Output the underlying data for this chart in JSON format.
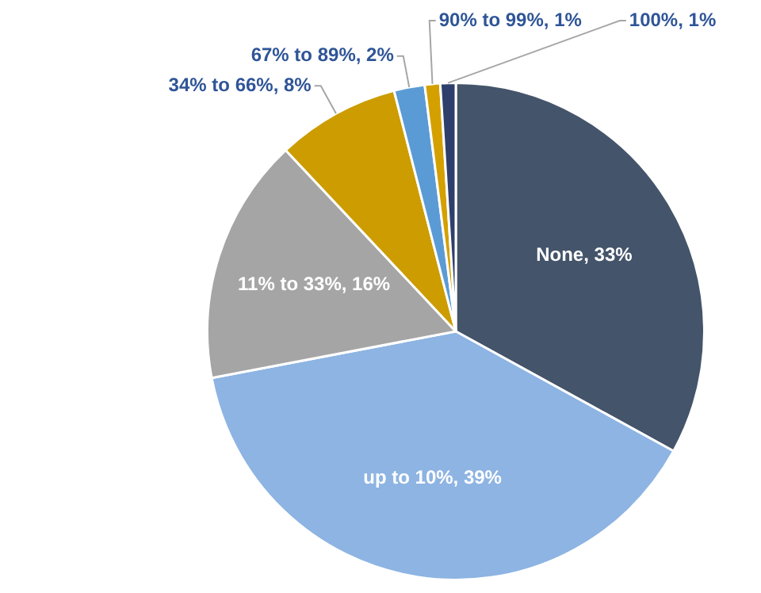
{
  "chart_data": {
    "type": "pie",
    "categories": [
      "None",
      "up to 10%",
      "11% to 33%",
      "34% to 66%",
      "67% to 89%",
      "90% to 99%",
      "100%"
    ],
    "values": [
      33,
      39,
      16,
      8,
      2,
      1,
      1
    ],
    "colors": [
      "#44546a",
      "#8db4e2",
      "#a5a5a5",
      "#cc9c00",
      "#5b9bd5",
      "#d4a000",
      "#2f3f6b"
    ],
    "value_labels": [
      "33%",
      "39%",
      "16%",
      "8%",
      "2%",
      "1%",
      "1%"
    ]
  }
}
